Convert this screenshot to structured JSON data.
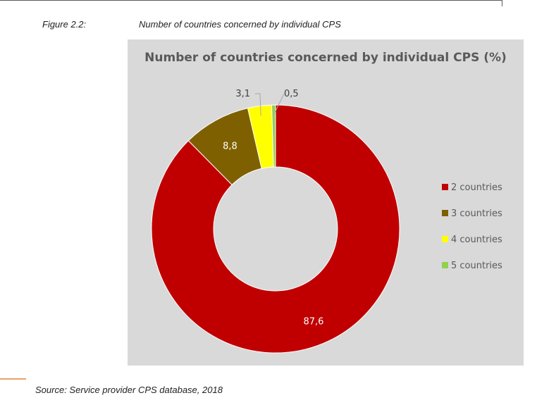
{
  "figure": {
    "label": "Figure 2.2:",
    "caption": "Number of countries concerned by individual CPS"
  },
  "source": "Source: Service provider CPS database, 2018",
  "chart_data": {
    "type": "pie",
    "donut": true,
    "title": "Number of countries concerned by individual CPS (%)",
    "categories": [
      "2 countries",
      "3 countries",
      "4 countries",
      "5 countries"
    ],
    "values": [
      87.6,
      8.8,
      3.1,
      0.5
    ],
    "data_labels": [
      "87,6",
      "8,8",
      "3,1",
      "0,5"
    ],
    "colors": [
      "#c00000",
      "#7f6000",
      "#ffff00",
      "#92d050"
    ],
    "legend_position": "right"
  }
}
